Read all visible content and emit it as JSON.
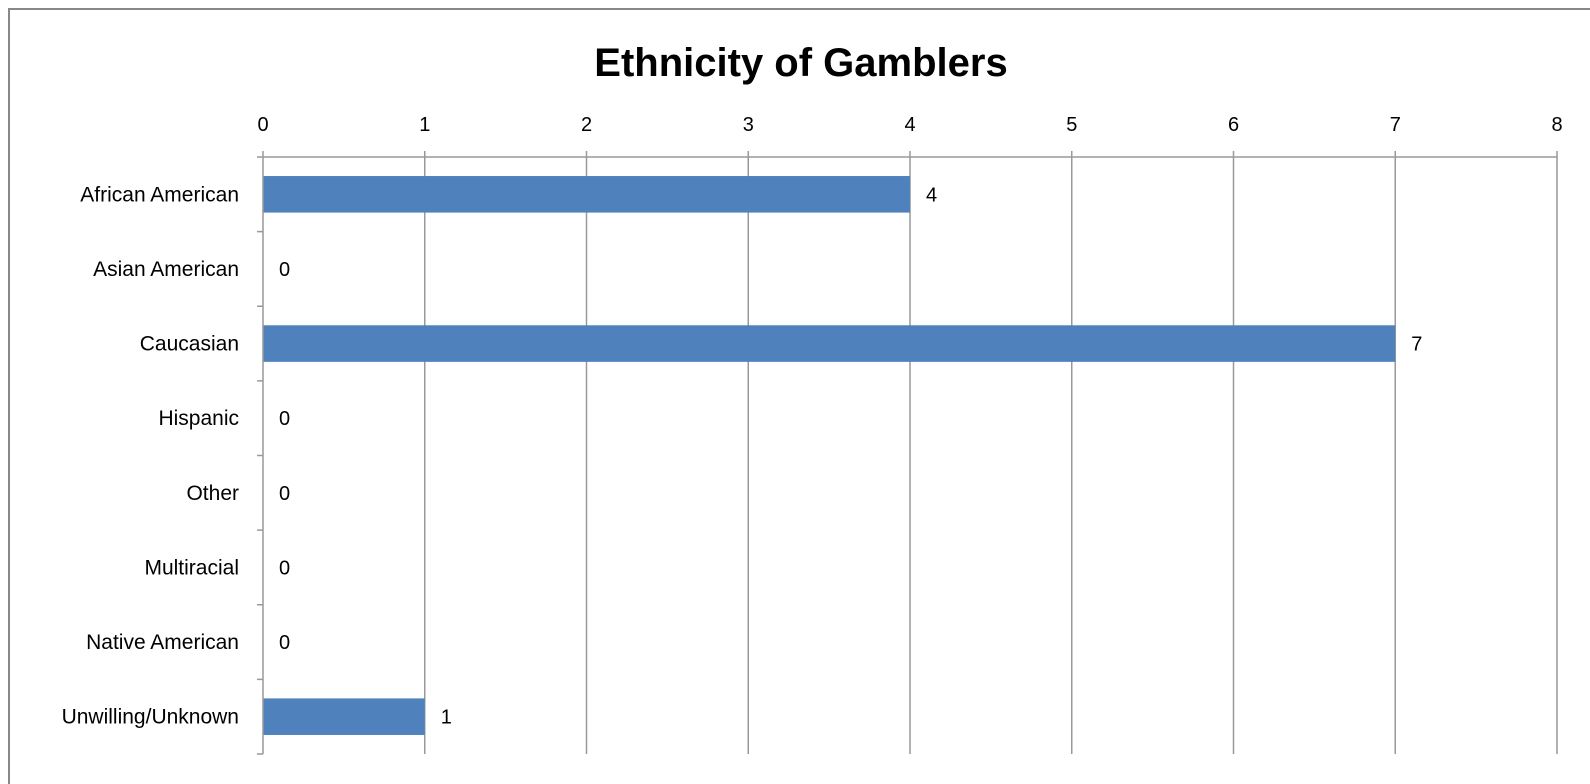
{
  "chart_data": {
    "type": "bar",
    "orientation": "horizontal",
    "title": "Ethnicity of Gamblers",
    "xlabel": "",
    "ylabel": "",
    "categories": [
      "African American",
      "Asian American",
      "Caucasian",
      "Hispanic",
      "Other",
      "Multiracial",
      "Native American",
      "Unwilling/Unknown"
    ],
    "values": [
      4,
      0,
      7,
      0,
      0,
      0,
      0,
      1
    ],
    "data_labels": [
      "4",
      "0",
      "7",
      "0",
      "0",
      "0",
      "0",
      "1"
    ],
    "xlim": [
      0,
      8
    ],
    "x_ticks": [
      "0",
      "1",
      "2",
      "3",
      "4",
      "5",
      "6",
      "7",
      "8"
    ],
    "x_axis_position": "top",
    "grid": true,
    "legend": "none",
    "bar_color": "#4f81bd",
    "grid_color": "#999999",
    "border_color": "#888888"
  }
}
